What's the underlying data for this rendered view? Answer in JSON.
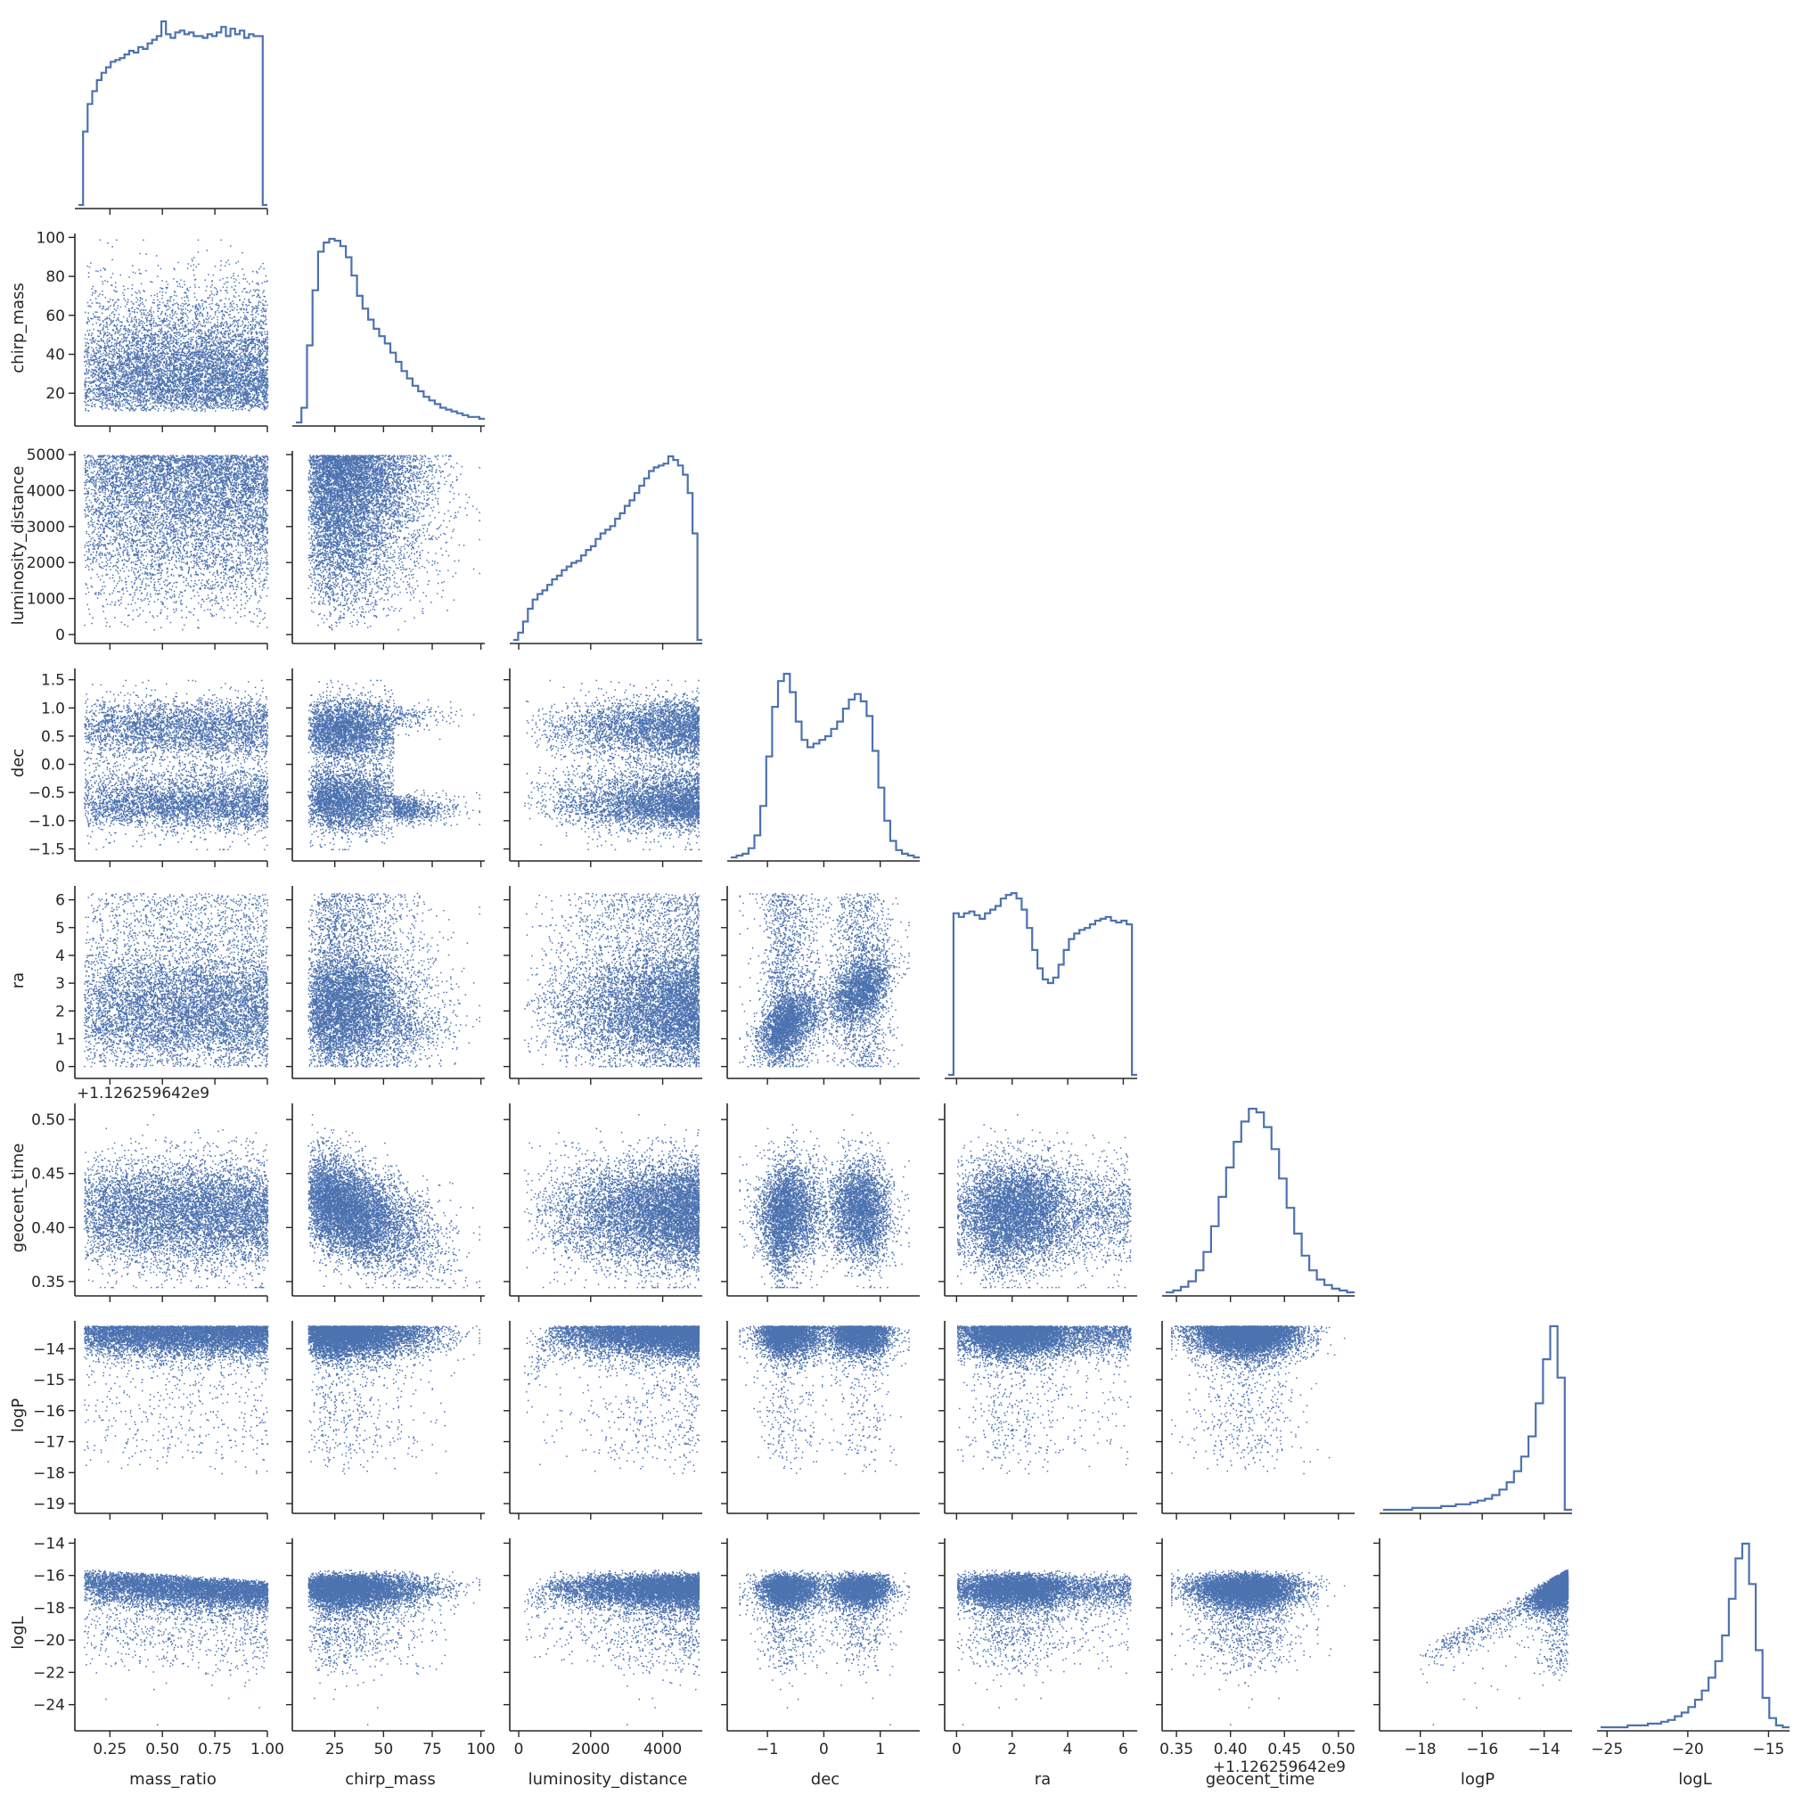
{
  "chart_data": {
    "type": "scatter",
    "layout": "corner",
    "variables": [
      "mass_ratio",
      "chirp_mass",
      "luminosity_distance",
      "dec",
      "ra",
      "geocent_time",
      "logP",
      "logL"
    ],
    "axis_labels": [
      "mass_ratio",
      "chirp_mass",
      "luminosity_distance",
      "dec",
      "ra",
      "geocent_time",
      "logP",
      "logL"
    ],
    "color": "#4c72b0",
    "grid": false,
    "ranges": [
      [
        0.1,
        1.0
      ],
      [
        5,
        102
      ],
      [
        -150,
        5100
      ],
      [
        -1.65,
        1.7
      ],
      [
        -0.3,
        6.5
      ],
      [
        0.34,
        0.515
      ],
      [
        -19.2,
        -13.1
      ],
      [
        -25.4,
        -13.7
      ]
    ],
    "ticks": [
      [
        0.25,
        0.5,
        0.75,
        1.0
      ],
      [
        25,
        50,
        75,
        100
      ],
      [
        0,
        2000,
        4000
      ],
      [
        -1,
        0,
        1
      ],
      [
        0,
        2,
        4,
        6
      ],
      [
        0.35,
        0.4,
        0.45,
        0.5
      ],
      [
        -18,
        -16,
        -14
      ],
      [
        -25,
        -20,
        -15
      ]
    ],
    "tick_labels": [
      [
        "0.25",
        "0.50",
        "0.75",
        "1.00"
      ],
      [
        "25",
        "50",
        "75",
        "100"
      ],
      [
        "0",
        "2000",
        "4000"
      ],
      [
        "−1",
        "0",
        "1"
      ],
      [
        "0",
        "2",
        "4",
        "6"
      ],
      [
        "0.35",
        "0.40",
        "0.45",
        "0.50"
      ],
      [
        "−18",
        "−16",
        "−14"
      ],
      [
        "−25",
        "−20",
        "−15"
      ]
    ],
    "y_ticks": [
      null,
      [
        20,
        40,
        60,
        80,
        100
      ],
      [
        0,
        1000,
        2000,
        3000,
        4000,
        5000
      ],
      [
        -1.5,
        -1.0,
        -0.5,
        0.0,
        0.5,
        1.0,
        1.5
      ],
      [
        0,
        1,
        2,
        3,
        4,
        5,
        6
      ],
      [
        0.35,
        0.4,
        0.45,
        0.5
      ],
      [
        -19,
        -18,
        -17,
        -16,
        -15,
        -14
      ],
      [
        -24,
        -22,
        -20,
        -18,
        -16,
        -14
      ]
    ],
    "y_tick_labels": [
      null,
      [
        "20",
        "40",
        "60",
        "80",
        "100"
      ],
      [
        "0",
        "1000",
        "2000",
        "3000",
        "4000",
        "5000"
      ],
      [
        "−1.5",
        "−1.0",
        "−0.5",
        "0.0",
        "0.5",
        "1.0",
        "1.5"
      ],
      [
        "0",
        "1",
        "2",
        "3",
        "4",
        "5",
        "6"
      ],
      [
        "0.35",
        "0.40",
        "0.45",
        "0.50"
      ],
      [
        "−19",
        "−18",
        "−17",
        "−16",
        "−15",
        "−14"
      ],
      [
        "−24",
        "−22",
        "−20",
        "−18",
        "−16",
        "−14"
      ]
    ],
    "offset_text": "+1.126259642e9",
    "histograms": [
      {
        "variable": "mass_ratio",
        "y": [
          0,
          40,
          55,
          62,
          68,
          72,
          75,
          78,
          79,
          80,
          82,
          84,
          83,
          86,
          85,
          88,
          90,
          92,
          100,
          93,
          91,
          94,
          95,
          93,
          94,
          92,
          92,
          91,
          93,
          92,
          94,
          97,
          92,
          96,
          93,
          95,
          91,
          93,
          92,
          92,
          0
        ]
      },
      {
        "variable": "chirp_mass",
        "y": [
          0,
          8,
          42,
          72,
          93,
          98,
          100,
          99,
          96,
          90,
          80,
          69,
          62,
          56,
          51,
          47,
          43,
          38,
          33,
          28,
          24,
          20,
          17,
          14,
          12,
          10,
          8,
          7,
          6,
          5,
          4,
          3,
          3,
          2
        ]
      },
      {
        "variable": "luminosity_distance",
        "y": [
          0,
          4,
          10,
          17,
          22,
          25,
          27,
          30,
          33,
          35,
          38,
          40,
          42,
          43,
          46,
          49,
          51,
          55,
          58,
          60,
          62,
          66,
          69,
          73,
          76,
          80,
          84,
          88,
          92,
          94,
          95,
          96,
          100,
          98,
          95,
          90,
          80,
          58,
          0
        ]
      },
      {
        "variable": "dec",
        "y": [
          0,
          1,
          2,
          5,
          12,
          28,
          55,
          82,
          96,
          100,
          90,
          74,
          64,
          60,
          62,
          64,
          66,
          70,
          74,
          81,
          86,
          89,
          85,
          77,
          58,
          38,
          20,
          9,
          4,
          2,
          1,
          0
        ]
      },
      {
        "variable": "ra",
        "y": [
          0,
          88,
          86,
          88,
          89,
          87,
          85,
          88,
          90,
          92,
          96,
          98,
          99,
          96,
          90,
          80,
          68,
          58,
          52,
          50,
          53,
          60,
          68,
          74,
          77,
          79,
          80,
          82,
          84,
          85,
          86,
          84,
          83,
          84,
          82,
          0
        ]
      },
      {
        "variable": "geocent_time",
        "y": [
          0,
          1,
          3,
          6,
          12,
          22,
          36,
          52,
          68,
          82,
          93,
          100,
          98,
          90,
          78,
          62,
          46,
          32,
          20,
          12,
          7,
          4,
          2,
          1,
          0
        ]
      },
      {
        "variable": "logP",
        "y": [
          0,
          0,
          0,
          0,
          1,
          1,
          1,
          1,
          2,
          2,
          3,
          3,
          4,
          5,
          6,
          8,
          11,
          15,
          21,
          29,
          40,
          58,
          82,
          100,
          72,
          0
        ]
      },
      {
        "variable": "logL",
        "y": [
          0,
          0,
          0,
          0,
          1,
          1,
          1,
          2,
          2,
          3,
          4,
          6,
          8,
          11,
          15,
          20,
          27,
          36,
          50,
          70,
          92,
          100,
          78,
          42,
          16,
          5,
          1,
          0
        ]
      }
    ]
  }
}
